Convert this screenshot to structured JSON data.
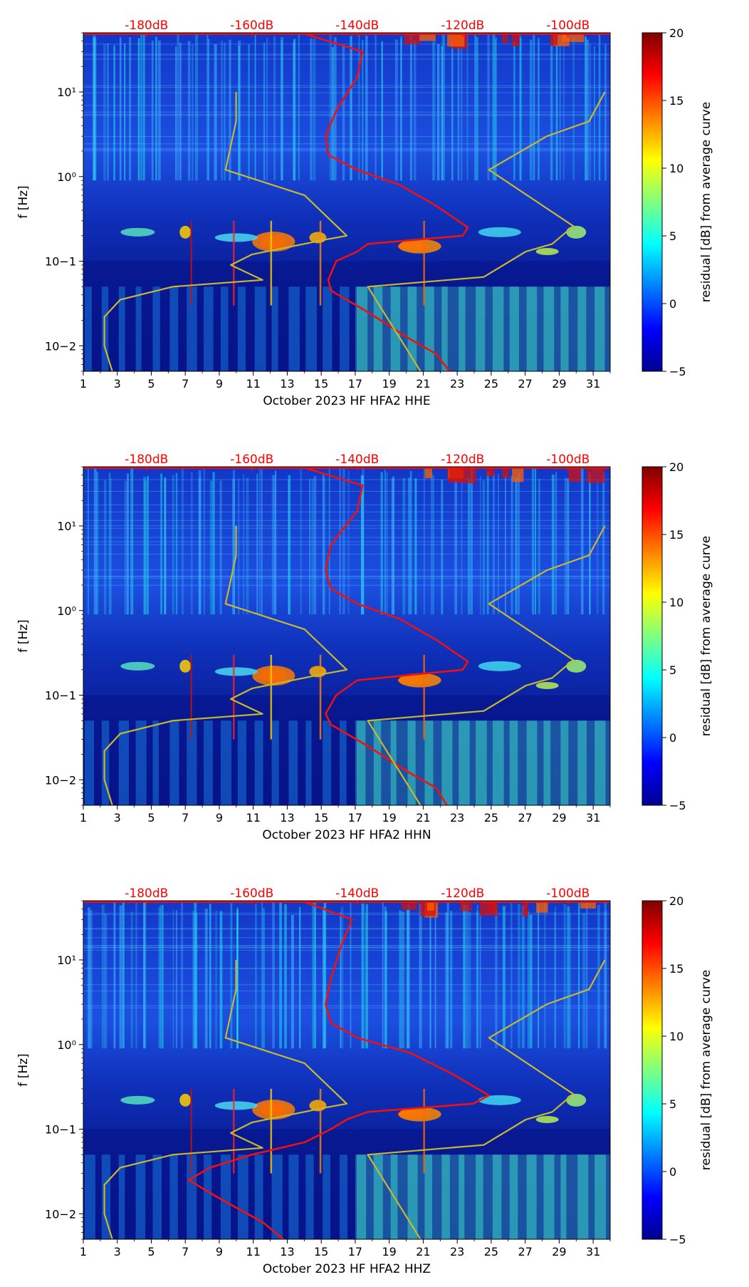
{
  "chart_data": [
    {
      "type": "heatmap",
      "title": "",
      "xlabel": "October 2023 HF HFA2  HHE",
      "ylabel": "f [Hz]",
      "x_ticks": [
        "1",
        "3",
        "5",
        "7",
        "9",
        "11",
        "13",
        "15",
        "17",
        "19",
        "21",
        "23",
        "25",
        "27",
        "29",
        "31"
      ],
      "y_ticks": [
        "10−2",
        "10−1",
        "10⁰",
        "10¹"
      ],
      "ylim": [
        0.005,
        50
      ],
      "yscale": "log",
      "top_axis_ticks": [
        "-180dB",
        "-160dB",
        "-140dB",
        "-120dB",
        "-100dB"
      ],
      "top_axis_color": "#ff0000",
      "colorbar": {
        "label": "residual [dB] from average curve",
        "min": -5,
        "max": 20,
        "ticks": [
          "−5",
          "0",
          "5",
          "10",
          "15",
          "20"
        ]
      },
      "series": [
        {
          "color": "#ee1111",
          "points": [
            [
              -150.6,
              50
            ],
            [
              -139,
              30
            ],
            [
              -140,
              15
            ],
            [
              -144,
              6
            ],
            [
              -146,
              3
            ],
            [
              -145.5,
              1.8
            ],
            [
              -140,
              1.2
            ],
            [
              -132,
              0.8
            ],
            [
              -125,
              0.45
            ],
            [
              -119,
              0.25
            ],
            [
              -120,
              0.2
            ],
            [
              -138,
              0.16
            ],
            [
              -140,
              0.13
            ],
            [
              -144,
              0.1
            ],
            [
              -145.5,
              0.06
            ],
            [
              -145,
              0.045
            ],
            [
              -138,
              0.025
            ],
            [
              -130,
              0.012
            ],
            [
              -125,
              0.008
            ],
            [
              -122.5,
              0.005
            ]
          ]
        },
        {
          "color": "#c8b830",
          "points": [
            [
              -163,
              10
            ],
            [
              -163,
              4.5
            ],
            [
              -165,
              1.2
            ],
            [
              -150,
              0.6
            ],
            [
              -142,
              0.2
            ],
            [
              -146,
              0.18
            ],
            [
              -160,
              0.12
            ],
            [
              -164,
              0.09
            ],
            [
              -158,
              0.06
            ],
            [
              -175,
              0.05
            ],
            [
              -185,
              0.035
            ],
            [
              -188,
              0.022
            ],
            [
              -188,
              0.01
            ],
            [
              -186.5,
              0.005
            ]
          ]
        },
        {
          "color": "#c8b830",
          "points": [
            [
              -93,
              10
            ],
            [
              -96,
              4.5
            ],
            [
              -104,
              3
            ],
            [
              -115,
              1.2
            ],
            [
              -99,
              0.26
            ],
            [
              -103,
              0.16
            ],
            [
              -108,
              0.13
            ],
            [
              -116,
              0.065
            ],
            [
              -138,
              0.05
            ],
            [
              -131,
              0.01
            ],
            [
              -128,
              0.005
            ]
          ]
        }
      ]
    },
    {
      "type": "heatmap",
      "title": "",
      "xlabel": "October 2023 HF HFA2  HHN",
      "ylabel": "f [Hz]",
      "x_ticks": [
        "1",
        "3",
        "5",
        "7",
        "9",
        "11",
        "13",
        "15",
        "17",
        "19",
        "21",
        "23",
        "25",
        "27",
        "29",
        "31"
      ],
      "y_ticks": [
        "10−2",
        "10−1",
        "10⁰",
        "10¹"
      ],
      "ylim": [
        0.005,
        50
      ],
      "yscale": "log",
      "top_axis_ticks": [
        "-180dB",
        "-160dB",
        "-140dB",
        "-120dB",
        "-100dB"
      ],
      "top_axis_color": "#ff0000",
      "colorbar": {
        "label": "residual [dB] from average curve",
        "min": -5,
        "max": 20,
        "ticks": [
          "−5",
          "0",
          "5",
          "10",
          "15",
          "20"
        ]
      },
      "series": [
        {
          "color": "#ee1111",
          "points": [
            [
              -150.6,
              50
            ],
            [
              -139,
              30
            ],
            [
              -140,
              15
            ],
            [
              -145,
              6
            ],
            [
              -146,
              3
            ],
            [
              -145,
              1.8
            ],
            [
              -140,
              1.2
            ],
            [
              -132,
              0.8
            ],
            [
              -125,
              0.45
            ],
            [
              -119,
              0.25
            ],
            [
              -120,
              0.2
            ],
            [
              -140,
              0.15
            ],
            [
              -144,
              0.1
            ],
            [
              -146,
              0.06
            ],
            [
              -145,
              0.045
            ],
            [
              -138,
              0.025
            ],
            [
              -130,
              0.012
            ],
            [
              -125,
              0.008
            ],
            [
              -123,
              0.005
            ]
          ]
        },
        {
          "color": "#c8b830",
          "points": [
            [
              -163,
              10
            ],
            [
              -163,
              4.5
            ],
            [
              -165,
              1.2
            ],
            [
              -150,
              0.6
            ],
            [
              -142,
              0.2
            ],
            [
              -146,
              0.18
            ],
            [
              -160,
              0.12
            ],
            [
              -164,
              0.09
            ],
            [
              -158,
              0.06
            ],
            [
              -175,
              0.05
            ],
            [
              -185,
              0.035
            ],
            [
              -188,
              0.022
            ],
            [
              -188,
              0.01
            ],
            [
              -186.5,
              0.005
            ]
          ]
        },
        {
          "color": "#c8b830",
          "points": [
            [
              -93,
              10
            ],
            [
              -96,
              4.5
            ],
            [
              -104,
              3
            ],
            [
              -115,
              1.2
            ],
            [
              -99,
              0.26
            ],
            [
              -103,
              0.16
            ],
            [
              -108,
              0.13
            ],
            [
              -116,
              0.065
            ],
            [
              -138,
              0.05
            ],
            [
              -131,
              0.01
            ],
            [
              -128,
              0.005
            ]
          ]
        }
      ]
    },
    {
      "type": "heatmap",
      "title": "",
      "xlabel": "October 2023 HF HFA2  HHZ",
      "ylabel": "f [Hz]",
      "x_ticks": [
        "1",
        "3",
        "5",
        "7",
        "9",
        "11",
        "13",
        "15",
        "17",
        "19",
        "21",
        "23",
        "25",
        "27",
        "29",
        "31"
      ],
      "y_ticks": [
        "10−2",
        "10−1",
        "10⁰",
        "10¹"
      ],
      "ylim": [
        0.005,
        50
      ],
      "yscale": "log",
      "top_axis_ticks": [
        "-180dB",
        "-160dB",
        "-140dB",
        "-120dB",
        "-100dB"
      ],
      "top_axis_color": "#ff0000",
      "colorbar": {
        "label": "residual [dB] from average curve",
        "min": -5,
        "max": 20,
        "ticks": [
          "−5",
          "0",
          "5",
          "10",
          "15",
          "20"
        ]
      },
      "series": [
        {
          "color": "#ee1111",
          "points": [
            [
              -150.6,
              50
            ],
            [
              -141,
              30
            ],
            [
              -143,
              15
            ],
            [
              -145,
              6
            ],
            [
              -146,
              3
            ],
            [
              -145,
              1.8
            ],
            [
              -140,
              1.2
            ],
            [
              -130,
              0.8
            ],
            [
              -122,
              0.45
            ],
            [
              -115,
              0.25
            ],
            [
              -118,
              0.2
            ],
            [
              -138,
              0.16
            ],
            [
              -142,
              0.13
            ],
            [
              -145,
              0.1
            ],
            [
              -150,
              0.07
            ],
            [
              -160,
              0.05
            ],
            [
              -168,
              0.035
            ],
            [
              -172,
              0.025
            ],
            [
              -166,
              0.015
            ],
            [
              -158,
              0.008
            ],
            [
              -154,
              0.005
            ]
          ]
        },
        {
          "color": "#c8b830",
          "points": [
            [
              -163,
              10
            ],
            [
              -163,
              4.5
            ],
            [
              -165,
              1.2
            ],
            [
              -150,
              0.6
            ],
            [
              -142,
              0.2
            ],
            [
              -146,
              0.18
            ],
            [
              -160,
              0.12
            ],
            [
              -164,
              0.09
            ],
            [
              -158,
              0.06
            ],
            [
              -175,
              0.05
            ],
            [
              -185,
              0.035
            ],
            [
              -188,
              0.022
            ],
            [
              -188,
              0.01
            ],
            [
              -186.5,
              0.005
            ]
          ]
        },
        {
          "color": "#c8b830",
          "points": [
            [
              -93,
              10
            ],
            [
              -96,
              4.5
            ],
            [
              -104,
              3
            ],
            [
              -115,
              1.2
            ],
            [
              -99,
              0.26
            ],
            [
              -103,
              0.16
            ],
            [
              -108,
              0.13
            ],
            [
              -116,
              0.065
            ],
            [
              -138,
              0.05
            ],
            [
              -131,
              0.01
            ],
            [
              -128,
              0.005
            ]
          ]
        }
      ]
    }
  ]
}
